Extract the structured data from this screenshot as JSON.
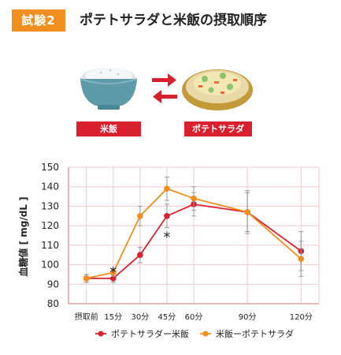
{
  "header": {
    "badge": "試験2",
    "title": "ポテトサラダと米飯の摂取順序"
  },
  "illustration": {
    "rice_label": "米飯",
    "salad_label": "ポテトサラダ",
    "icons": [
      "rice-bowl-icon",
      "potato-salad-icon",
      "arrow-right-icon",
      "arrow-left-icon"
    ],
    "colors": {
      "label_bg": "#d9202e",
      "arrow": "#d9202e",
      "badge": "#f08e1e"
    }
  },
  "chart_data": {
    "type": "line",
    "title": "",
    "xlabel": "",
    "ylabel": "血糖値 [ mg/dL ]",
    "ylim": [
      80,
      150
    ],
    "yticks": [
      80,
      90,
      100,
      110,
      120,
      130,
      140,
      150
    ],
    "x": [
      0,
      15,
      30,
      45,
      60,
      90,
      120
    ],
    "x_tick_labels": [
      "摂取前",
      "15分",
      "30分",
      "45分",
      "60分",
      "90分",
      "120分"
    ],
    "grid": true,
    "legend_position": "bottom",
    "series": [
      {
        "name": "ポテトサラダー米飯",
        "color": "#d9202e",
        "values": [
          93,
          93,
          105,
          125,
          131,
          127,
          107
        ],
        "error": [
          2,
          2,
          4,
          6,
          6,
          10,
          10
        ]
      },
      {
        "name": "米飯ーポテトサラダ",
        "color": "#f08e1e",
        "values": [
          93,
          96,
          125,
          139,
          134,
          127,
          103
        ],
        "error": [
          2,
          2,
          5,
          6,
          6,
          11,
          9
        ]
      }
    ],
    "annotations": [
      {
        "text": "*",
        "x": 15,
        "y": 97
      },
      {
        "text": "*",
        "x": 45,
        "y": 115
      }
    ]
  }
}
